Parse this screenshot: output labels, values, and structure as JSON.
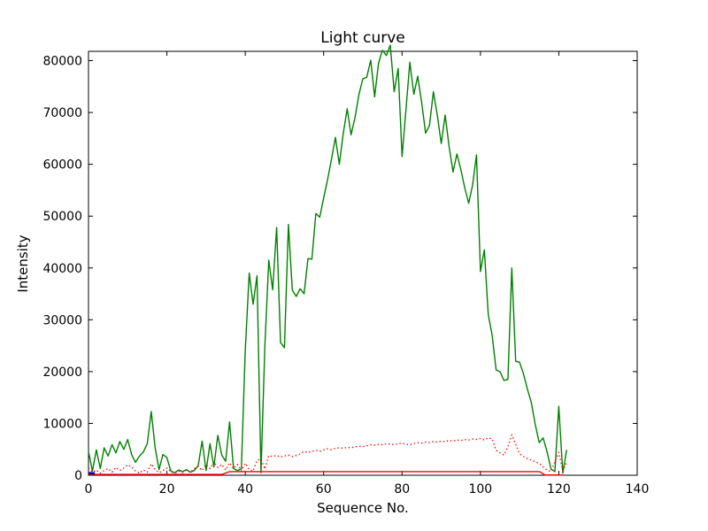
{
  "figure": {
    "background": "#ffffff"
  },
  "chart_data": {
    "type": "line",
    "title": "Light curve",
    "xlabel": "Sequence No.",
    "ylabel": "Intensity",
    "xlim": [
      0,
      140
    ],
    "ylim": [
      0,
      81800
    ],
    "xticks": [
      0,
      20,
      40,
      60,
      80,
      100,
      120,
      140
    ],
    "yticks": [
      0,
      10000,
      20000,
      30000,
      40000,
      50000,
      60000,
      70000,
      80000
    ],
    "grid": false,
    "legend": null,
    "tick_direction": "in",
    "axis_color": "#000000",
    "series": [
      {
        "name": "main-intensity-green",
        "color": "#008000",
        "style": "solid",
        "width": 1.4,
        "x_start": 0,
        "x_step": 1,
        "y": [
          4600,
          800,
          4900,
          1300,
          5300,
          3700,
          5900,
          4300,
          6500,
          5000,
          6900,
          4000,
          2500,
          3700,
          4500,
          6100,
          12300,
          5300,
          1100,
          4000,
          3400,
          800,
          500,
          1000,
          700,
          1100,
          600,
          900,
          1900,
          6600,
          900,
          6100,
          1600,
          7700,
          3900,
          2700,
          10300,
          1300,
          900,
          1200,
          24000,
          39000,
          33000,
          38500,
          500,
          25000,
          41500,
          35800,
          47800,
          25600,
          24600,
          48400,
          35700,
          34500,
          36000,
          35000,
          41800,
          41700,
          50500,
          49800,
          53500,
          57000,
          61000,
          65200,
          60000,
          66000,
          70700,
          65700,
          69000,
          73500,
          76500,
          76800,
          80100,
          73000,
          79500,
          82000,
          81000,
          83000,
          74000,
          78500,
          61500,
          70500,
          79700,
          73500,
          77000,
          72000,
          66000,
          67500,
          74000,
          69500,
          64000,
          69500,
          63500,
          58500,
          62000,
          59000,
          55500,
          52500,
          56000,
          61800,
          39300,
          43500,
          31000,
          27000,
          20300,
          20000,
          18300,
          18500,
          40000,
          22000,
          21800,
          19500,
          16600,
          14000,
          9700,
          6300,
          7200,
          4600,
          1200,
          700,
          13300,
          400,
          4900
        ]
      },
      {
        "name": "secondary-intensity-dotted-red",
        "color": "#ff0000",
        "style": "dotted",
        "width": 1.4,
        "x_start": 0,
        "x_step": 1,
        "y": [
          1400,
          600,
          1000,
          400,
          900,
          1300,
          600,
          1500,
          900,
          1400,
          2000,
          1600,
          800,
          400,
          1000,
          600,
          2200,
          1100,
          500,
          900,
          1400,
          700,
          400,
          800,
          500,
          1000,
          600,
          1300,
          1700,
          900,
          2100,
          1300,
          2600,
          1500,
          2100,
          1000,
          2400,
          1300,
          2100,
          800,
          2300,
          1100,
          800,
          2900,
          3100,
          1200,
          3800,
          3600,
          3800,
          3500,
          3700,
          3900,
          3600,
          3800,
          4100,
          4600,
          4400,
          4600,
          4800,
          4600,
          4900,
          5100,
          4900,
          5200,
          5300,
          5200,
          5400,
          5300,
          5500,
          5600,
          5500,
          5700,
          5900,
          5800,
          6000,
          5900,
          6100,
          6000,
          5900,
          6100,
          6200,
          6000,
          5900,
          6100,
          6300,
          6200,
          6400,
          6300,
          6500,
          6400,
          6600,
          6500,
          6700,
          6600,
          6800,
          6700,
          6900,
          6800,
          7000,
          6900,
          7100,
          6800,
          7200,
          7000,
          4800,
          4300,
          3900,
          5500,
          7800,
          6000,
          4100,
          3600,
          3200,
          2900,
          2600,
          2300,
          1600,
          1000,
          700,
          2600,
          4400,
          900,
          2400
        ]
      },
      {
        "name": "baseline-solid-red",
        "color": "#ff0000",
        "style": "solid",
        "width": 1.4,
        "points": [
          [
            0,
            150
          ],
          [
            34,
            150
          ],
          [
            36,
            700
          ],
          [
            115,
            700
          ],
          [
            116.5,
            50
          ],
          [
            121,
            50
          ]
        ]
      },
      {
        "name": "start-marker-blue",
        "color": "#0000cc",
        "style": "solid",
        "width": 2.6,
        "points": [
          [
            0,
            400
          ],
          [
            1.6,
            400
          ]
        ]
      }
    ]
  }
}
